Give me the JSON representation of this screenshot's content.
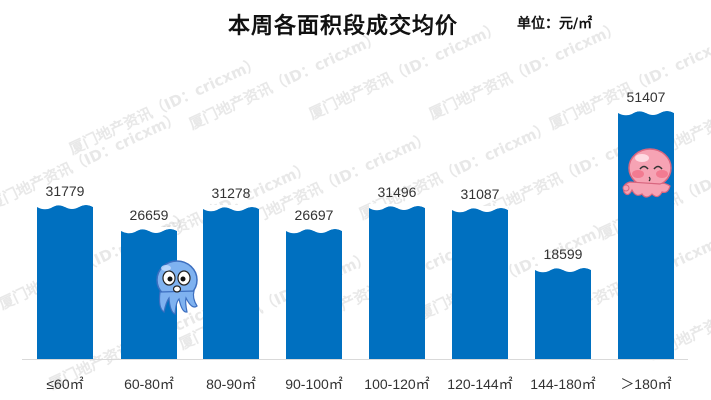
{
  "header": {
    "title": "本周各面积段成交均价",
    "unit": "单位：元/㎡"
  },
  "watermark": "厦门地产资讯（ID：cricxm）",
  "colors": {
    "bar": "#0070c0",
    "text": "#333333",
    "baseline": "#d9d9d9"
  },
  "chart_data": {
    "type": "bar",
    "title": "本周各面积段成交均价",
    "unit": "元/㎡",
    "categories": [
      "≤60㎡",
      "60-80㎡",
      "80-90㎡",
      "90-100㎡",
      "100-120㎡",
      "120-144㎡",
      "144-180㎡",
      "＞180㎡"
    ],
    "values": [
      31779,
      26659,
      31278,
      26697,
      31496,
      31087,
      18599,
      51407
    ],
    "labels": [
      "31779",
      "26659",
      "31278",
      "26697",
      "31496",
      "31087",
      "18599",
      "51407"
    ],
    "xlabel": "",
    "ylabel": "",
    "grid": false,
    "legend": "none"
  }
}
